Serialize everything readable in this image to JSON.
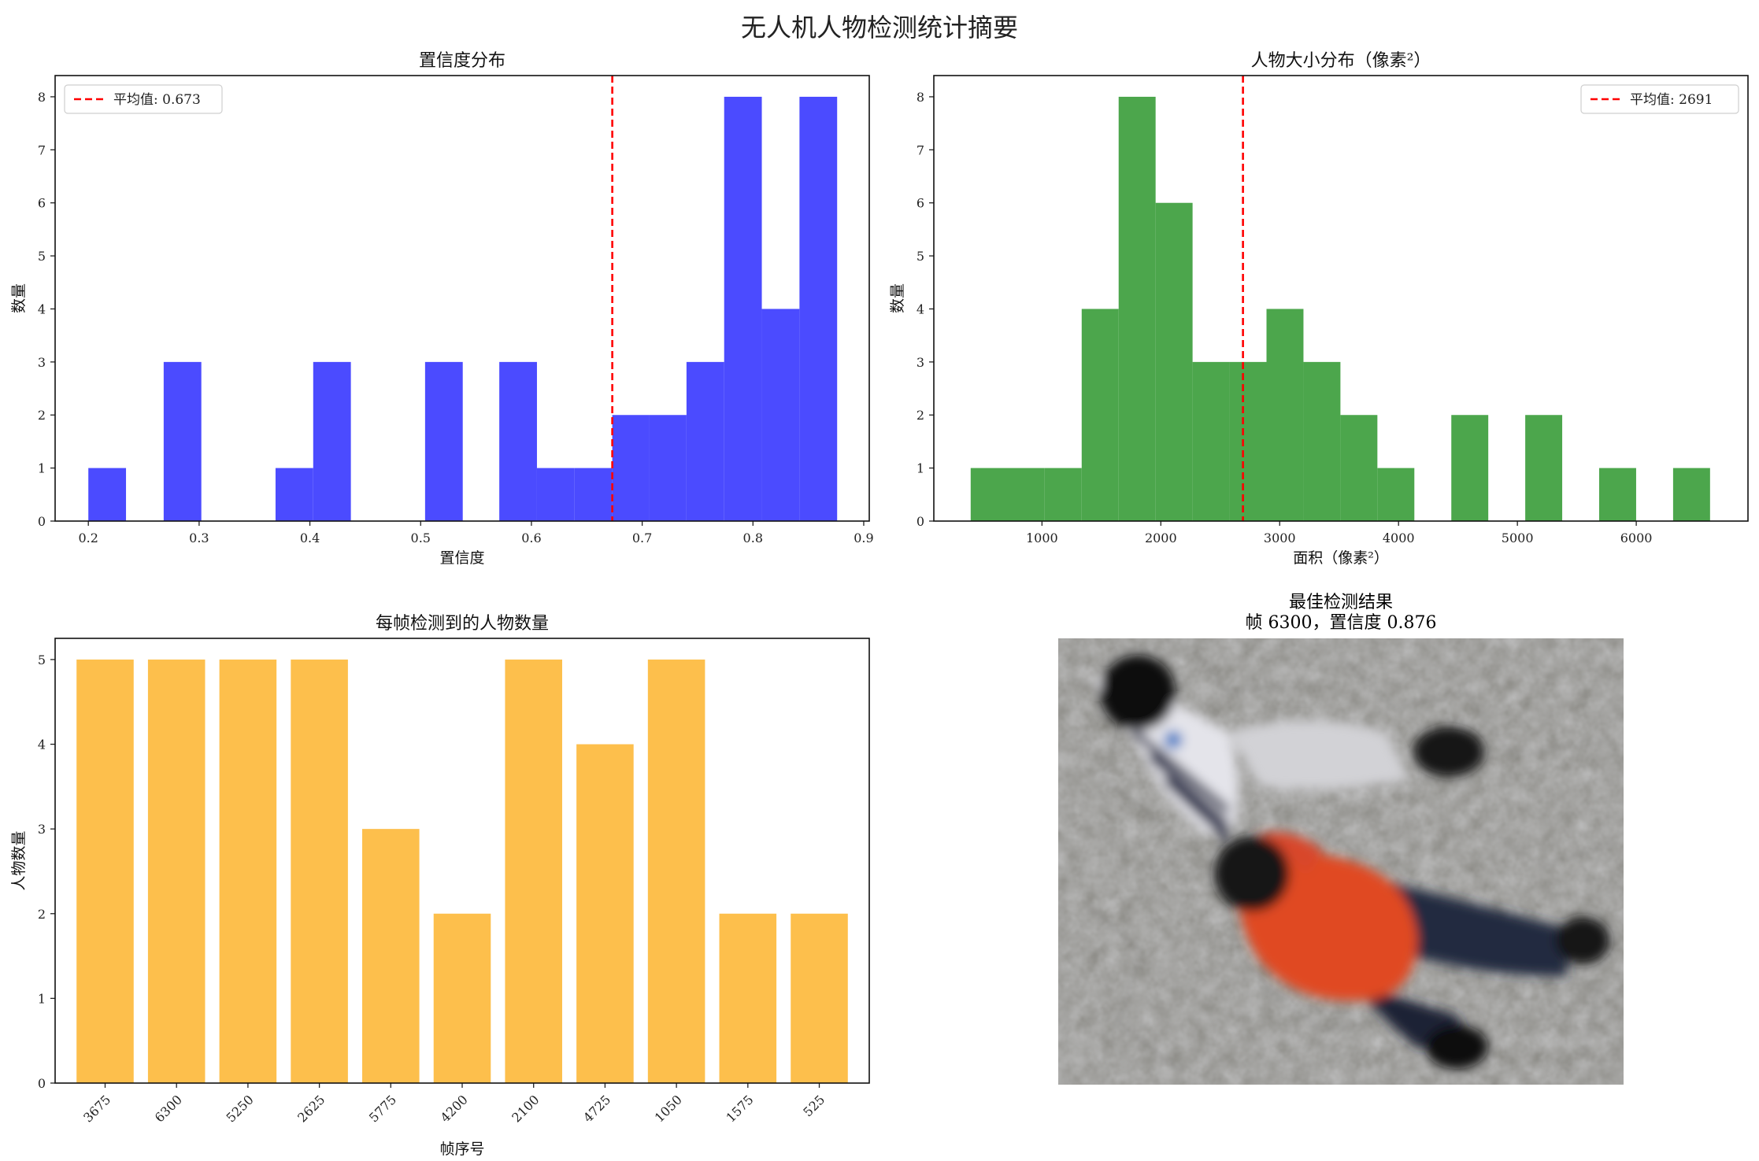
{
  "figure": {
    "title": "无人机人物检测统计摘要"
  },
  "chart_data": [
    {
      "id": "confidence",
      "type": "bar",
      "title": "置信度分布",
      "xlabel": "置信度",
      "ylabel": "数量",
      "xlim": [
        0.17,
        0.905
      ],
      "ylim": [
        0,
        8.4
      ],
      "xticks": [
        0.2,
        0.3,
        0.4,
        0.5,
        0.6,
        0.7,
        0.8,
        0.9
      ],
      "xtick_labels": [
        "0.2",
        "0.3",
        "0.4",
        "0.5",
        "0.6",
        "0.7",
        "0.8",
        "0.9"
      ],
      "yticks": [
        0,
        1,
        2,
        3,
        4,
        5,
        6,
        7,
        8
      ],
      "bins": [
        {
          "x0": 0.2,
          "x1": 0.234,
          "count": 1
        },
        {
          "x0": 0.268,
          "x1": 0.302,
          "count": 3
        },
        {
          "x0": 0.369,
          "x1": 0.403,
          "count": 1
        },
        {
          "x0": 0.403,
          "x1": 0.437,
          "count": 3
        },
        {
          "x0": 0.504,
          "x1": 0.538,
          "count": 3
        },
        {
          "x0": 0.571,
          "x1": 0.605,
          "count": 3
        },
        {
          "x0": 0.605,
          "x1": 0.639,
          "count": 1
        },
        {
          "x0": 0.639,
          "x1": 0.673,
          "count": 1
        },
        {
          "x0": 0.673,
          "x1": 0.706,
          "count": 2
        },
        {
          "x0": 0.706,
          "x1": 0.74,
          "count": 2
        },
        {
          "x0": 0.74,
          "x1": 0.774,
          "count": 3
        },
        {
          "x0": 0.774,
          "x1": 0.808,
          "count": 8
        },
        {
          "x0": 0.808,
          "x1": 0.842,
          "count": 4
        },
        {
          "x0": 0.842,
          "x1": 0.876,
          "count": 8
        }
      ],
      "color": "#4b4bff",
      "mean": 0.673,
      "mean_label": "平均值: 0.673",
      "mean_color": "#ff0000",
      "legend_position": "upper left"
    },
    {
      "id": "size",
      "type": "bar",
      "title": "人物大小分布（像素²）",
      "xlabel": "面积（像素²）",
      "ylabel": "数量",
      "xlim": [
        90,
        6940
      ],
      "ylim": [
        0,
        8.4
      ],
      "xticks": [
        1000,
        2000,
        3000,
        4000,
        5000,
        6000
      ],
      "xtick_labels": [
        "1000",
        "2000",
        "3000",
        "4000",
        "5000",
        "6000"
      ],
      "yticks": [
        0,
        1,
        2,
        3,
        4,
        5,
        6,
        7,
        8
      ],
      "bins": [
        {
          "x0": 400,
          "x1": 1023,
          "count": 1
        },
        {
          "x0": 1023,
          "x1": 1334,
          "count": 1
        },
        {
          "x0": 1334,
          "x1": 1645,
          "count": 4
        },
        {
          "x0": 1645,
          "x1": 1956,
          "count": 8
        },
        {
          "x0": 1956,
          "x1": 2267,
          "count": 6
        },
        {
          "x0": 2267,
          "x1": 2578,
          "count": 3
        },
        {
          "x0": 2578,
          "x1": 2889,
          "count": 3
        },
        {
          "x0": 2889,
          "x1": 3200,
          "count": 4
        },
        {
          "x0": 3200,
          "x1": 3511,
          "count": 3
        },
        {
          "x0": 3511,
          "x1": 3822,
          "count": 2
        },
        {
          "x0": 3822,
          "x1": 4133,
          "count": 1
        },
        {
          "x0": 4444,
          "x1": 4755,
          "count": 2
        },
        {
          "x0": 5066,
          "x1": 5377,
          "count": 2
        },
        {
          "x0": 5688,
          "x1": 5999,
          "count": 1
        },
        {
          "x0": 6310,
          "x1": 6621,
          "count": 1
        }
      ],
      "color": "#4ca64c",
      "mean": 2691,
      "mean_label": "平均值: 2691",
      "mean_color": "#ff0000",
      "legend_position": "upper right"
    },
    {
      "id": "per_frame",
      "type": "bar",
      "title": "每帧检测到的人物数量",
      "xlabel": "帧序号",
      "ylabel": "人物数量",
      "categories": [
        "3675",
        "6300",
        "5250",
        "2625",
        "5775",
        "4200",
        "2100",
        "4725",
        "1050",
        "1575",
        "525"
      ],
      "values": [
        5,
        5,
        5,
        5,
        3,
        2,
        5,
        4,
        5,
        2,
        2
      ],
      "ylim": [
        0,
        5.25
      ],
      "yticks": [
        0,
        1,
        2,
        3,
        4,
        5
      ],
      "color": "#fdbf4c"
    }
  ],
  "best_detection": {
    "title_line1": "最佳检测结果",
    "title_line2": "帧 6300，置信度 0.876",
    "image_description_icon": "aerial-people-photo"
  }
}
